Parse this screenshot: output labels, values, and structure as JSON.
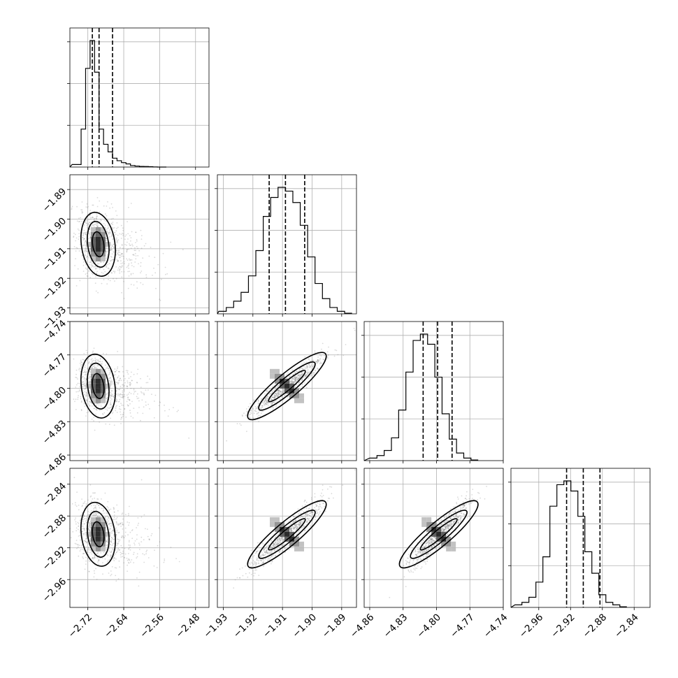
{
  "chart_data": {
    "type": "corner",
    "grid": true,
    "params": [
      {
        "range": [
          -2.76,
          -2.45
        ],
        "ticks": [
          -2.72,
          -2.64,
          -2.56,
          -2.48
        ],
        "tick_labels": [
          "−2.72",
          "−2.64",
          "−2.56",
          "−2.48"
        ],
        "quantiles": [
          -2.71,
          -2.695,
          -2.665
        ],
        "center": -2.697,
        "hist": {
          "start": -2.755,
          "step": 0.01,
          "counts": [
            0.02,
            0.02,
            0.3,
            0.78,
            1.0,
            0.75,
            0.3,
            0.18,
            0.12,
            0.07,
            0.05,
            0.035,
            0.025,
            0.012,
            0.008,
            0.005,
            0.004,
            0.003,
            0.001,
            0,
            0
          ]
        }
      },
      {
        "range": [
          -1.932,
          -1.885
        ],
        "ticks": [
          -1.93,
          -1.92,
          -1.91,
          -1.9,
          -1.89
        ],
        "tick_labels": [
          "−1.93",
          "−1.92",
          "−1.91",
          "−1.90",
          "−1.89"
        ],
        "quantiles": [
          -1.9145,
          -1.909,
          -1.9025
        ],
        "center": -1.9085,
        "hist": {
          "start": -1.9315,
          "step": 0.0025,
          "counts": [
            0.02,
            0.05,
            0.1,
            0.17,
            0.3,
            0.5,
            0.77,
            0.92,
            1.0,
            0.97,
            0.88,
            0.7,
            0.45,
            0.24,
            0.12,
            0.05,
            0.02,
            0.005
          ]
        }
      },
      {
        "range": [
          -4.865,
          -4.74
        ],
        "ticks": [
          -4.86,
          -4.83,
          -4.8,
          -4.77,
          -4.74
        ],
        "tick_labels": [
          "−4.86",
          "−4.83",
          "−4.80",
          "−4.77",
          "−4.74"
        ],
        "quantiles": [
          -4.812,
          -4.799,
          -4.786
        ],
        "center": -4.798,
        "hist": {
          "start": -4.86,
          "step": 0.0065,
          "counts": [
            0.02,
            0.04,
            0.08,
            0.18,
            0.4,
            0.7,
            0.95,
            1.0,
            0.92,
            0.66,
            0.37,
            0.17,
            0.06,
            0.02,
            0.005
          ]
        }
      },
      {
        "range": [
          -2.995,
          -2.82
        ],
        "ticks": [
          -2.96,
          -2.92,
          -2.88,
          -2.84
        ],
        "tick_labels": [
          "−2.96",
          "−2.92",
          "−2.88",
          "−2.84"
        ],
        "quantiles": [
          -2.925,
          -2.904,
          -2.883
        ],
        "center": -2.903,
        "hist": {
          "start": -2.99,
          "step": 0.0088,
          "counts": [
            0.02,
            0.04,
            0.08,
            0.2,
            0.4,
            0.8,
            0.97,
            1.0,
            0.92,
            0.72,
            0.44,
            0.27,
            0.1,
            0.04,
            0.02,
            0.005
          ]
        }
      }
    ]
  }
}
